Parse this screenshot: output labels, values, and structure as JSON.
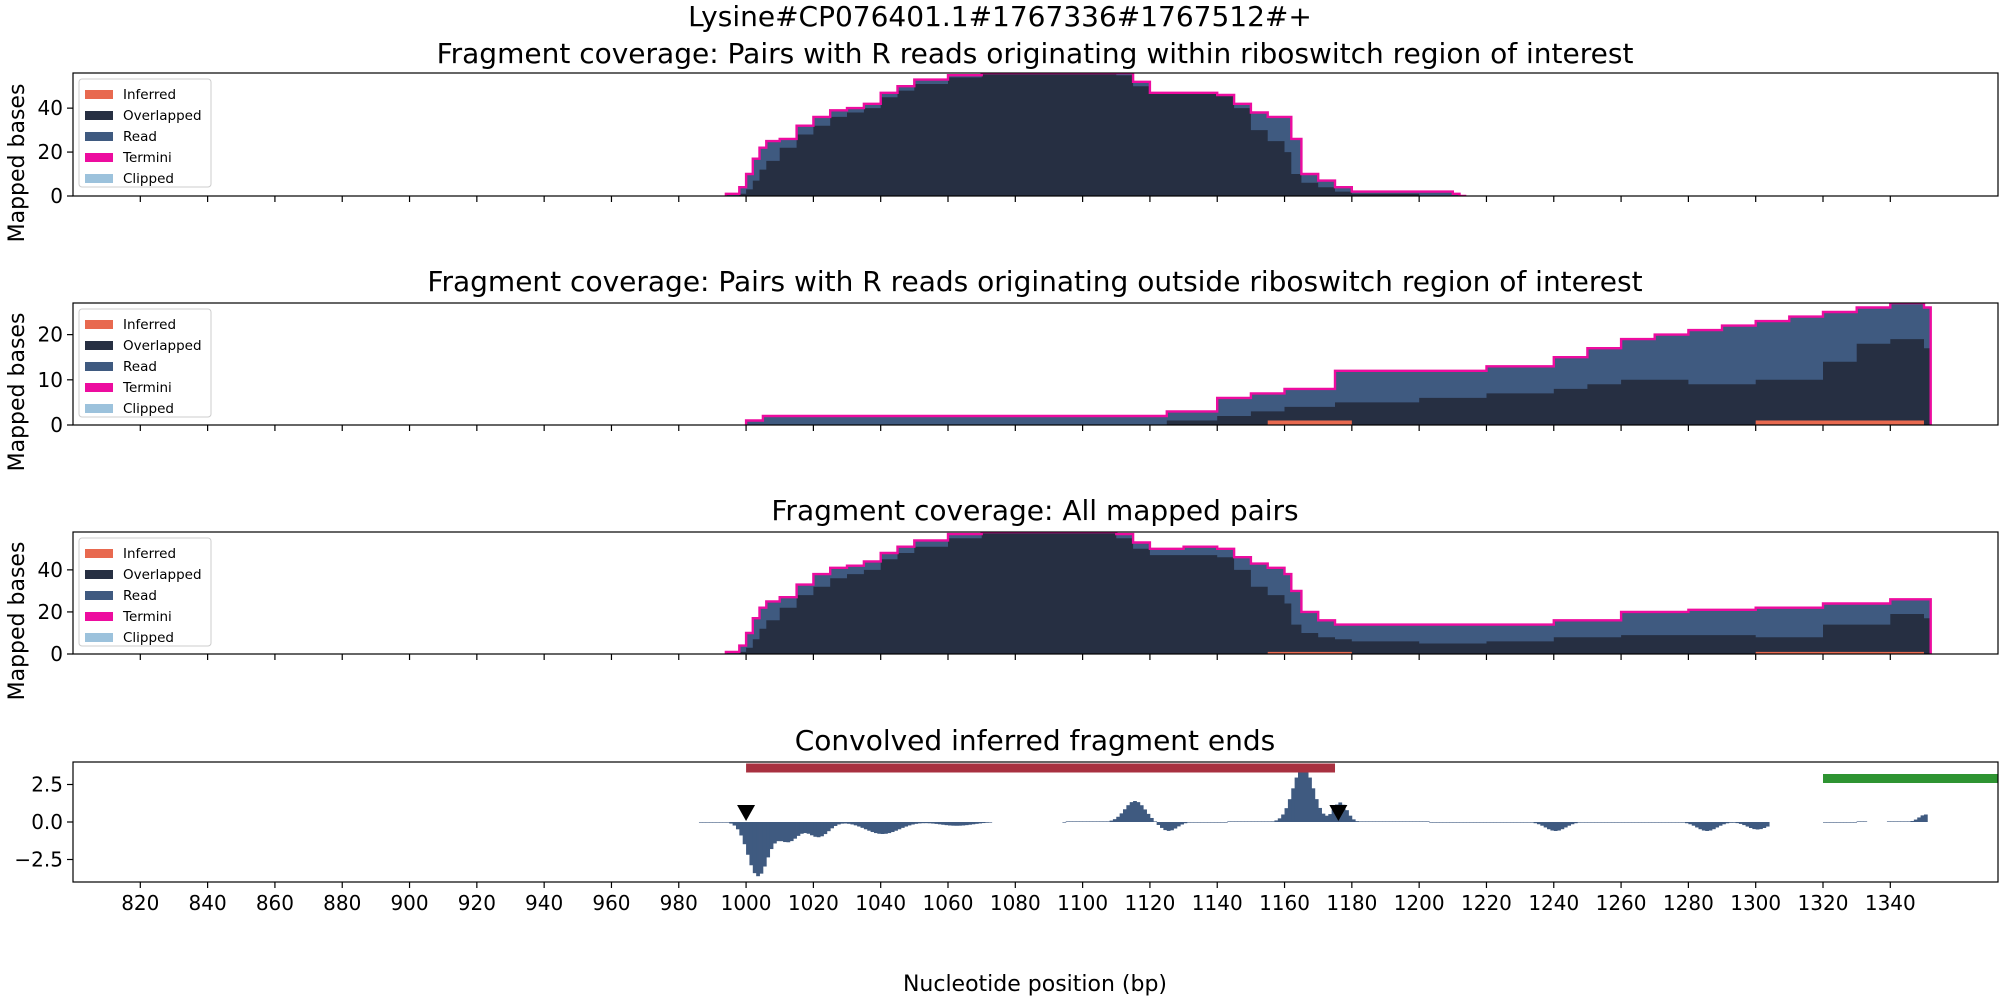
{
  "figure": {
    "suptitle": "Lysine#CP076401.1#1767336#1767512#+",
    "xlabel": "Nucleotide position (bp)"
  },
  "colors": {
    "inferred": "#e8694f",
    "overlapped": "#262f42",
    "read": "#3f5a80",
    "termini": "#ed0c9f",
    "clipped": "#9cc2dc",
    "riboswitch_bar": "#a83140",
    "green_bar": "#2e9432",
    "convolved": "#3f5a80"
  },
  "legend_labels": [
    "Inferred",
    "Overlapped",
    "Read",
    "Termini",
    "Clipped"
  ],
  "chart_data": [
    {
      "type": "area",
      "title": "Fragment coverage: Pairs with R reads originating within riboswitch region of interest",
      "ylabel": "Mapped bases",
      "xlim": [
        800,
        1372
      ],
      "ylim": [
        0,
        56
      ],
      "yticks": [
        0,
        20,
        40
      ],
      "legend": "top-left",
      "series": [
        {
          "name": "Read",
          "x": [
            994,
            998,
            1000,
            1002,
            1004,
            1006,
            1010,
            1015,
            1020,
            1025,
            1030,
            1035,
            1040,
            1045,
            1050,
            1060,
            1070,
            1080,
            1090,
            1100,
            1110,
            1115,
            1120,
            1130,
            1140,
            1145,
            1150,
            1155,
            1160,
            1162,
            1165,
            1170,
            1175,
            1180,
            1190,
            1200,
            1210,
            1212
          ],
          "y": [
            1,
            4,
            10,
            17,
            22,
            25,
            26,
            32,
            36,
            39,
            40,
            42,
            47,
            50,
            53,
            55,
            56,
            56,
            56,
            56,
            56,
            52,
            47,
            47,
            46,
            42,
            38,
            36,
            36,
            26,
            10,
            7,
            4,
            2,
            2,
            2,
            1,
            0
          ]
        },
        {
          "name": "Overlapped",
          "x": [
            994,
            998,
            1000,
            1002,
            1004,
            1006,
            1010,
            1015,
            1020,
            1025,
            1030,
            1035,
            1040,
            1045,
            1050,
            1060,
            1070,
            1080,
            1090,
            1100,
            1110,
            1115,
            1120,
            1130,
            1140,
            1145,
            1150,
            1155,
            1160,
            1162,
            1165,
            1170,
            1175,
            1180,
            1190,
            1200,
            1210,
            1212
          ],
          "y": [
            0,
            1,
            3,
            7,
            12,
            16,
            22,
            28,
            32,
            36,
            38,
            40,
            45,
            48,
            51,
            54,
            56,
            56,
            56,
            56,
            55,
            50,
            47,
            47,
            46,
            40,
            30,
            25,
            20,
            10,
            6,
            4,
            2,
            1,
            1,
            0,
            0,
            0
          ]
        }
      ]
    },
    {
      "type": "area",
      "title": "Fragment coverage: Pairs with R reads originating outside riboswitch region of interest",
      "ylabel": "Mapped bases",
      "xlim": [
        800,
        1372
      ],
      "ylim": [
        0,
        27
      ],
      "yticks": [
        0,
        10,
        20
      ],
      "legend": "top-left",
      "series": [
        {
          "name": "Read",
          "x": [
            1000,
            1005,
            1100,
            1125,
            1140,
            1150,
            1160,
            1175,
            1200,
            1220,
            1240,
            1250,
            1260,
            1270,
            1280,
            1290,
            1300,
            1310,
            1320,
            1330,
            1340,
            1350
          ],
          "y": [
            1,
            2,
            2,
            3,
            6,
            7,
            8,
            12,
            12,
            13,
            15,
            17,
            19,
            20,
            21,
            22,
            23,
            24,
            25,
            26,
            27,
            26
          ]
        },
        {
          "name": "Overlapped",
          "x": [
            1000,
            1100,
            1125,
            1140,
            1150,
            1160,
            1175,
            1200,
            1220,
            1240,
            1250,
            1260,
            1270,
            1280,
            1290,
            1300,
            1310,
            1320,
            1330,
            1340,
            1350
          ],
          "y": [
            0,
            0,
            1,
            2,
            3,
            4,
            5,
            6,
            7,
            8,
            9,
            10,
            10,
            9,
            9,
            10,
            10,
            14,
            18,
            19,
            17
          ]
        },
        {
          "name": "Inferred",
          "segments": [
            [
              1155,
              1180
            ],
            [
              1300,
              1350
            ]
          ],
          "value": 1
        }
      ]
    },
    {
      "type": "area",
      "title": "Fragment coverage: All mapped pairs",
      "ylabel": "Mapped bases",
      "xlim": [
        800,
        1372
      ],
      "ylim": [
        0,
        58
      ],
      "yticks": [
        0,
        20,
        40
      ],
      "legend": "top-left",
      "series": [
        {
          "name": "Read",
          "x": [
            994,
            998,
            1000,
            1002,
            1004,
            1006,
            1010,
            1015,
            1020,
            1025,
            1030,
            1035,
            1040,
            1045,
            1050,
            1060,
            1070,
            1080,
            1090,
            1100,
            1110,
            1115,
            1120,
            1130,
            1140,
            1145,
            1150,
            1155,
            1160,
            1162,
            1165,
            1170,
            1175,
            1180,
            1200,
            1220,
            1240,
            1260,
            1280,
            1300,
            1320,
            1340,
            1350
          ],
          "y": [
            1,
            4,
            10,
            17,
            22,
            25,
            27,
            33,
            38,
            41,
            42,
            44,
            48,
            51,
            54,
            57,
            58,
            58,
            58,
            58,
            57,
            53,
            50,
            51,
            50,
            46,
            43,
            41,
            38,
            30,
            20,
            16,
            14,
            14,
            14,
            14,
            16,
            20,
            21,
            22,
            24,
            26,
            26
          ]
        },
        {
          "name": "Overlapped",
          "x": [
            994,
            998,
            1000,
            1002,
            1004,
            1006,
            1010,
            1015,
            1020,
            1025,
            1030,
            1035,
            1040,
            1045,
            1050,
            1060,
            1070,
            1080,
            1090,
            1100,
            1110,
            1115,
            1120,
            1130,
            1140,
            1145,
            1150,
            1155,
            1160,
            1162,
            1165,
            1170,
            1175,
            1180,
            1200,
            1220,
            1240,
            1260,
            1280,
            1300,
            1320,
            1340,
            1350
          ],
          "y": [
            0,
            1,
            3,
            7,
            12,
            16,
            22,
            28,
            32,
            36,
            38,
            40,
            45,
            48,
            51,
            55,
            58,
            58,
            58,
            58,
            55,
            50,
            47,
            47,
            46,
            40,
            32,
            28,
            24,
            14,
            10,
            8,
            7,
            6,
            5,
            6,
            8,
            9,
            9,
            8,
            14,
            19,
            17
          ]
        },
        {
          "name": "Inferred",
          "segments": [
            [
              1155,
              1180
            ],
            [
              1300,
              1350
            ]
          ],
          "value": 1
        }
      ]
    },
    {
      "type": "bar",
      "title": "Convolved inferred fragment ends",
      "ylabel": "",
      "xlim": [
        800,
        1372
      ],
      "ylim": [
        -4.0,
        4.0
      ],
      "yticks": [
        -2.5,
        0.0,
        2.5
      ],
      "ytick_labels": [
        "−2.5",
        "0.0",
        "2.5"
      ],
      "xticks": [
        820,
        840,
        860,
        880,
        900,
        920,
        940,
        960,
        980,
        1000,
        1020,
        1040,
        1060,
        1080,
        1100,
        1120,
        1140,
        1160,
        1180,
        1200,
        1220,
        1240,
        1260,
        1280,
        1300,
        1320,
        1340
      ],
      "peaks": [
        {
          "center": 1003,
          "amp": -3.6,
          "width": 3
        },
        {
          "center": 1012,
          "amp": -1.3,
          "width": 3
        },
        {
          "center": 1021,
          "amp": -1.0,
          "width": 3
        },
        {
          "center": 1040,
          "amp": -0.8,
          "width": 5
        },
        {
          "center": 1062,
          "amp": -0.25,
          "width": 5
        },
        {
          "center": 1115,
          "amp": 1.4,
          "width": 3
        },
        {
          "center": 1125,
          "amp": -0.6,
          "width": 2.5
        },
        {
          "center": 1165,
          "amp": 3.7,
          "width": 3
        },
        {
          "center": 1176,
          "amp": 1.3,
          "width": 2
        },
        {
          "center": 1240,
          "amp": -0.6,
          "width": 3
        },
        {
          "center": 1285,
          "amp": -0.6,
          "width": 3
        },
        {
          "center": 1300,
          "amp": -0.5,
          "width": 3
        },
        {
          "center": 1350,
          "amp": 0.5,
          "width": 2
        }
      ],
      "riboswitch_bar": [
        1000,
        1175
      ],
      "riboswitch_bar_y": 3.6,
      "green_bar": [
        1320,
        1372
      ],
      "green_bar_y": 2.9,
      "markers": [
        1000,
        1176
      ]
    }
  ]
}
